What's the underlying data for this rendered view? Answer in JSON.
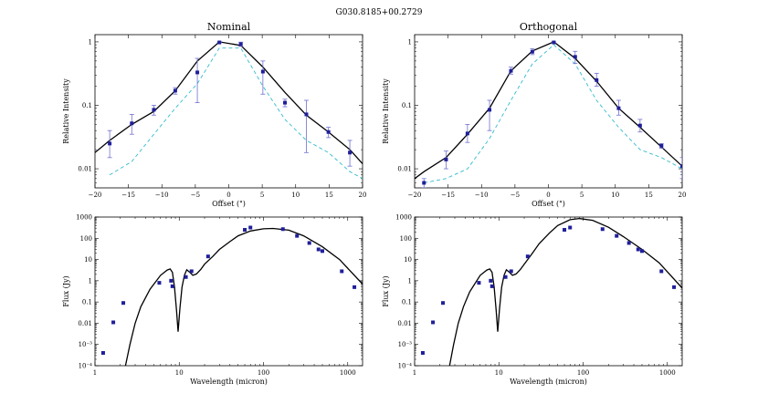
{
  "figure_title": "G030.8185+00.2729",
  "colors": {
    "model": "#000000",
    "beam": "#33bbcc",
    "data": "#1f1f9a",
    "error": "#6f6fd0"
  },
  "chart_data": [
    {
      "type": "line",
      "title": "Nominal",
      "xlabel": "Offset (\")",
      "ylabel": "Relative Intensity",
      "xscale": "linear",
      "yscale": "log",
      "xlim": [
        -20,
        20
      ],
      "ylim": [
        0.005,
        1.3
      ],
      "xticks": [
        -20,
        -15,
        -10,
        -5,
        0,
        5,
        10,
        15,
        20
      ],
      "xtick_labels": [
        "−20",
        "−15",
        "−10",
        "−5",
        "0",
        "5",
        "10",
        "15",
        "20"
      ],
      "yticks": [
        0.01,
        0.1,
        1
      ],
      "ytick_labels": [
        "0.01",
        "0.1",
        "1"
      ],
      "series": [
        {
          "name": "model",
          "style": "solid",
          "x": [
            -20,
            -17.8,
            -14.5,
            -11.2,
            -8,
            -4.7,
            -1.4,
            1.8,
            5.1,
            8.4,
            11.6,
            14.9,
            18.1,
            20
          ],
          "y": [
            0.018,
            0.028,
            0.05,
            0.08,
            0.17,
            0.5,
            1.0,
            0.88,
            0.4,
            0.16,
            0.07,
            0.038,
            0.02,
            0.012
          ]
        },
        {
          "name": "beam",
          "style": "dashed",
          "x": [
            -17.8,
            -14.5,
            -11.2,
            -8,
            -4.7,
            -1.4,
            1.8,
            5.1,
            8.4,
            11.6,
            14.9,
            18.1,
            20
          ],
          "y": [
            0.008,
            0.013,
            0.035,
            0.09,
            0.22,
            0.8,
            0.8,
            0.2,
            0.06,
            0.028,
            0.018,
            0.009,
            0.007
          ]
        },
        {
          "name": "data",
          "style": "points",
          "x": [
            -17.8,
            -14.5,
            -11.2,
            -8,
            -4.7,
            -1.4,
            1.8,
            5.1,
            8.4,
            11.6,
            14.9,
            18.1
          ],
          "y": [
            0.025,
            0.052,
            0.085,
            0.17,
            0.33,
            0.98,
            0.92,
            0.34,
            0.11,
            0.072,
            0.038,
            0.018
          ],
          "ylo": [
            0.015,
            0.035,
            0.07,
            0.15,
            0.11,
            0.97,
            0.85,
            0.15,
            0.095,
            0.018,
            0.031,
            0.011
          ],
          "yhi": [
            0.04,
            0.072,
            0.1,
            0.19,
            0.55,
            1.0,
            0.99,
            0.5,
            0.125,
            0.12,
            0.045,
            0.028
          ]
        }
      ]
    },
    {
      "type": "line",
      "title": "Orthogonal",
      "xlabel": "Offset (\")",
      "ylabel": "Relative Intensity",
      "xscale": "linear",
      "yscale": "log",
      "xlim": [
        -20,
        20
      ],
      "ylim": [
        0.005,
        1.3
      ],
      "xticks": [
        -20,
        -15,
        -10,
        -5,
        0,
        5,
        10,
        15,
        20
      ],
      "xtick_labels": [
        "−20",
        "−15",
        "−10",
        "−5",
        "0",
        "5",
        "10",
        "15",
        "20"
      ],
      "yticks": [
        0.01,
        0.1,
        1
      ],
      "ytick_labels": [
        "0.01",
        "0.1",
        "1"
      ],
      "series": [
        {
          "name": "model",
          "style": "solid",
          "x": [
            -20,
            -18.6,
            -15.3,
            -12.1,
            -8.8,
            -5.6,
            -2.4,
            0.8,
            4.0,
            7.2,
            10.5,
            13.7,
            16.9,
            20
          ],
          "y": [
            0.007,
            0.009,
            0.015,
            0.035,
            0.09,
            0.35,
            0.72,
            1.0,
            0.55,
            0.24,
            0.09,
            0.045,
            0.022,
            0.011
          ]
        },
        {
          "name": "beam",
          "style": "dashed",
          "x": [
            -18.6,
            -15.3,
            -12.1,
            -8.8,
            -5.6,
            -2.4,
            0.8,
            4.0,
            7.2,
            10.5,
            13.7,
            16.9,
            20
          ],
          "y": [
            0.006,
            0.007,
            0.01,
            0.03,
            0.12,
            0.45,
            0.9,
            0.45,
            0.12,
            0.045,
            0.02,
            0.015,
            0.01
          ]
        },
        {
          "name": "data",
          "style": "points",
          "x": [
            -18.6,
            -15.3,
            -12.1,
            -8.8,
            -5.6,
            -2.4,
            0.8,
            4.0,
            7.2,
            10.5,
            13.7,
            16.9,
            20
          ],
          "y": [
            0.006,
            0.014,
            0.036,
            0.085,
            0.35,
            0.7,
            0.98,
            0.58,
            0.25,
            0.09,
            0.048,
            0.023,
            0.011
          ],
          "ylo": [
            0.005,
            0.01,
            0.026,
            0.04,
            0.31,
            0.63,
            0.96,
            0.46,
            0.2,
            0.07,
            0.038,
            0.021,
            0.007
          ],
          "yhi": [
            0.007,
            0.019,
            0.05,
            0.12,
            0.4,
            0.78,
            1.0,
            0.71,
            0.32,
            0.12,
            0.06,
            0.025,
            0.015
          ]
        }
      ]
    },
    {
      "type": "line",
      "title": "",
      "xlabel": "Wavelength (micron)",
      "ylabel": "Flux (Jy)",
      "xscale": "log",
      "yscale": "log",
      "xlim": [
        1,
        1500
      ],
      "ylim": [
        0.0001,
        1000
      ],
      "xticks": [
        1,
        10,
        100,
        1000
      ],
      "xtick_labels": [
        "1",
        "10",
        "100",
        "1000"
      ],
      "yticks": [
        0.0001,
        0.001,
        0.01,
        0.1,
        1,
        10,
        100,
        1000
      ],
      "ytick_labels": [
        "10⁻⁴",
        "10⁻³",
        "0.01",
        "0.1",
        "1",
        "10",
        "100",
        "1000"
      ],
      "series": [
        {
          "name": "model",
          "style": "solid",
          "x": [
            2.3,
            2.6,
            3.0,
            3.5,
            4.5,
            6,
            7.2,
            7.8,
            8.3,
            8.8,
            9.3,
            9.7,
            10.2,
            10.8,
            11.5,
            12.3,
            13.2,
            14.5,
            16,
            18,
            20,
            25,
            30,
            40,
            50,
            70,
            100,
            130,
            200,
            300,
            500,
            800,
            1500
          ],
          "y": [
            0.0001,
            0.001,
            0.01,
            0.06,
            0.4,
            1.8,
            3.2,
            3.6,
            2.5,
            0.5,
            0.04,
            0.004,
            0.05,
            0.5,
            1.8,
            3.3,
            2.6,
            1.8,
            2.1,
            3.4,
            6,
            14,
            30,
            70,
            130,
            220,
            280,
            290,
            240,
            130,
            40,
            10,
            0.7
          ]
        },
        {
          "name": "data",
          "style": "squares",
          "x": [
            1.25,
            1.65,
            2.17,
            5.8,
            8.0,
            8.3,
            12,
            14,
            22,
            60,
            70,
            170,
            250,
            350,
            450,
            500,
            850,
            1200
          ],
          "y": [
            0.0004,
            0.011,
            0.09,
            0.8,
            1.0,
            0.55,
            1.5,
            2.8,
            14,
            250,
            320,
            270,
            130,
            60,
            30,
            25,
            2.8,
            0.5
          ]
        }
      ]
    },
    {
      "type": "line",
      "title": "",
      "xlabel": "Wavelength (micron)",
      "ylabel": "Flux (Jy)",
      "xscale": "log",
      "yscale": "log",
      "xlim": [
        1,
        1500
      ],
      "ylim": [
        0.0001,
        1000
      ],
      "xticks": [
        1,
        10,
        100,
        1000
      ],
      "xtick_labels": [
        "1",
        "10",
        "100",
        "1000"
      ],
      "yticks": [
        0.0001,
        0.001,
        0.01,
        0.1,
        1,
        10,
        100,
        1000
      ],
      "ytick_labels": [
        "10⁻⁴",
        "10⁻³",
        "0.01",
        "0.1",
        "1",
        "10",
        "100",
        "1000"
      ],
      "series": [
        {
          "name": "model",
          "style": "solid",
          "x": [
            2.6,
            2.9,
            3.3,
            3.8,
            4.5,
            6,
            7.2,
            7.8,
            8.3,
            8.8,
            9.3,
            9.7,
            10.2,
            10.8,
            11.5,
            12.3,
            13.2,
            14.5,
            16,
            18,
            20,
            25,
            30,
            40,
            50,
            70,
            90,
            130,
            200,
            300,
            500,
            800,
            1500
          ],
          "y": [
            0.0001,
            0.001,
            0.01,
            0.06,
            0.3,
            1.8,
            3.2,
            3.6,
            2.5,
            0.5,
            0.04,
            0.004,
            0.05,
            0.5,
            1.8,
            3.3,
            2.6,
            1.8,
            2.1,
            3.4,
            6,
            20,
            55,
            180,
            400,
            750,
            850,
            700,
            330,
            120,
            30,
            7,
            0.45
          ]
        },
        {
          "name": "data",
          "style": "squares",
          "x": [
            1.25,
            1.65,
            2.17,
            5.8,
            8.0,
            8.3,
            12,
            14,
            22,
            60,
            70,
            170,
            250,
            350,
            450,
            500,
            850,
            1200
          ],
          "y": [
            0.0004,
            0.011,
            0.09,
            0.8,
            1.0,
            0.55,
            1.5,
            2.8,
            14,
            250,
            320,
            270,
            130,
            60,
            30,
            25,
            2.8,
            0.5
          ]
        }
      ]
    }
  ]
}
